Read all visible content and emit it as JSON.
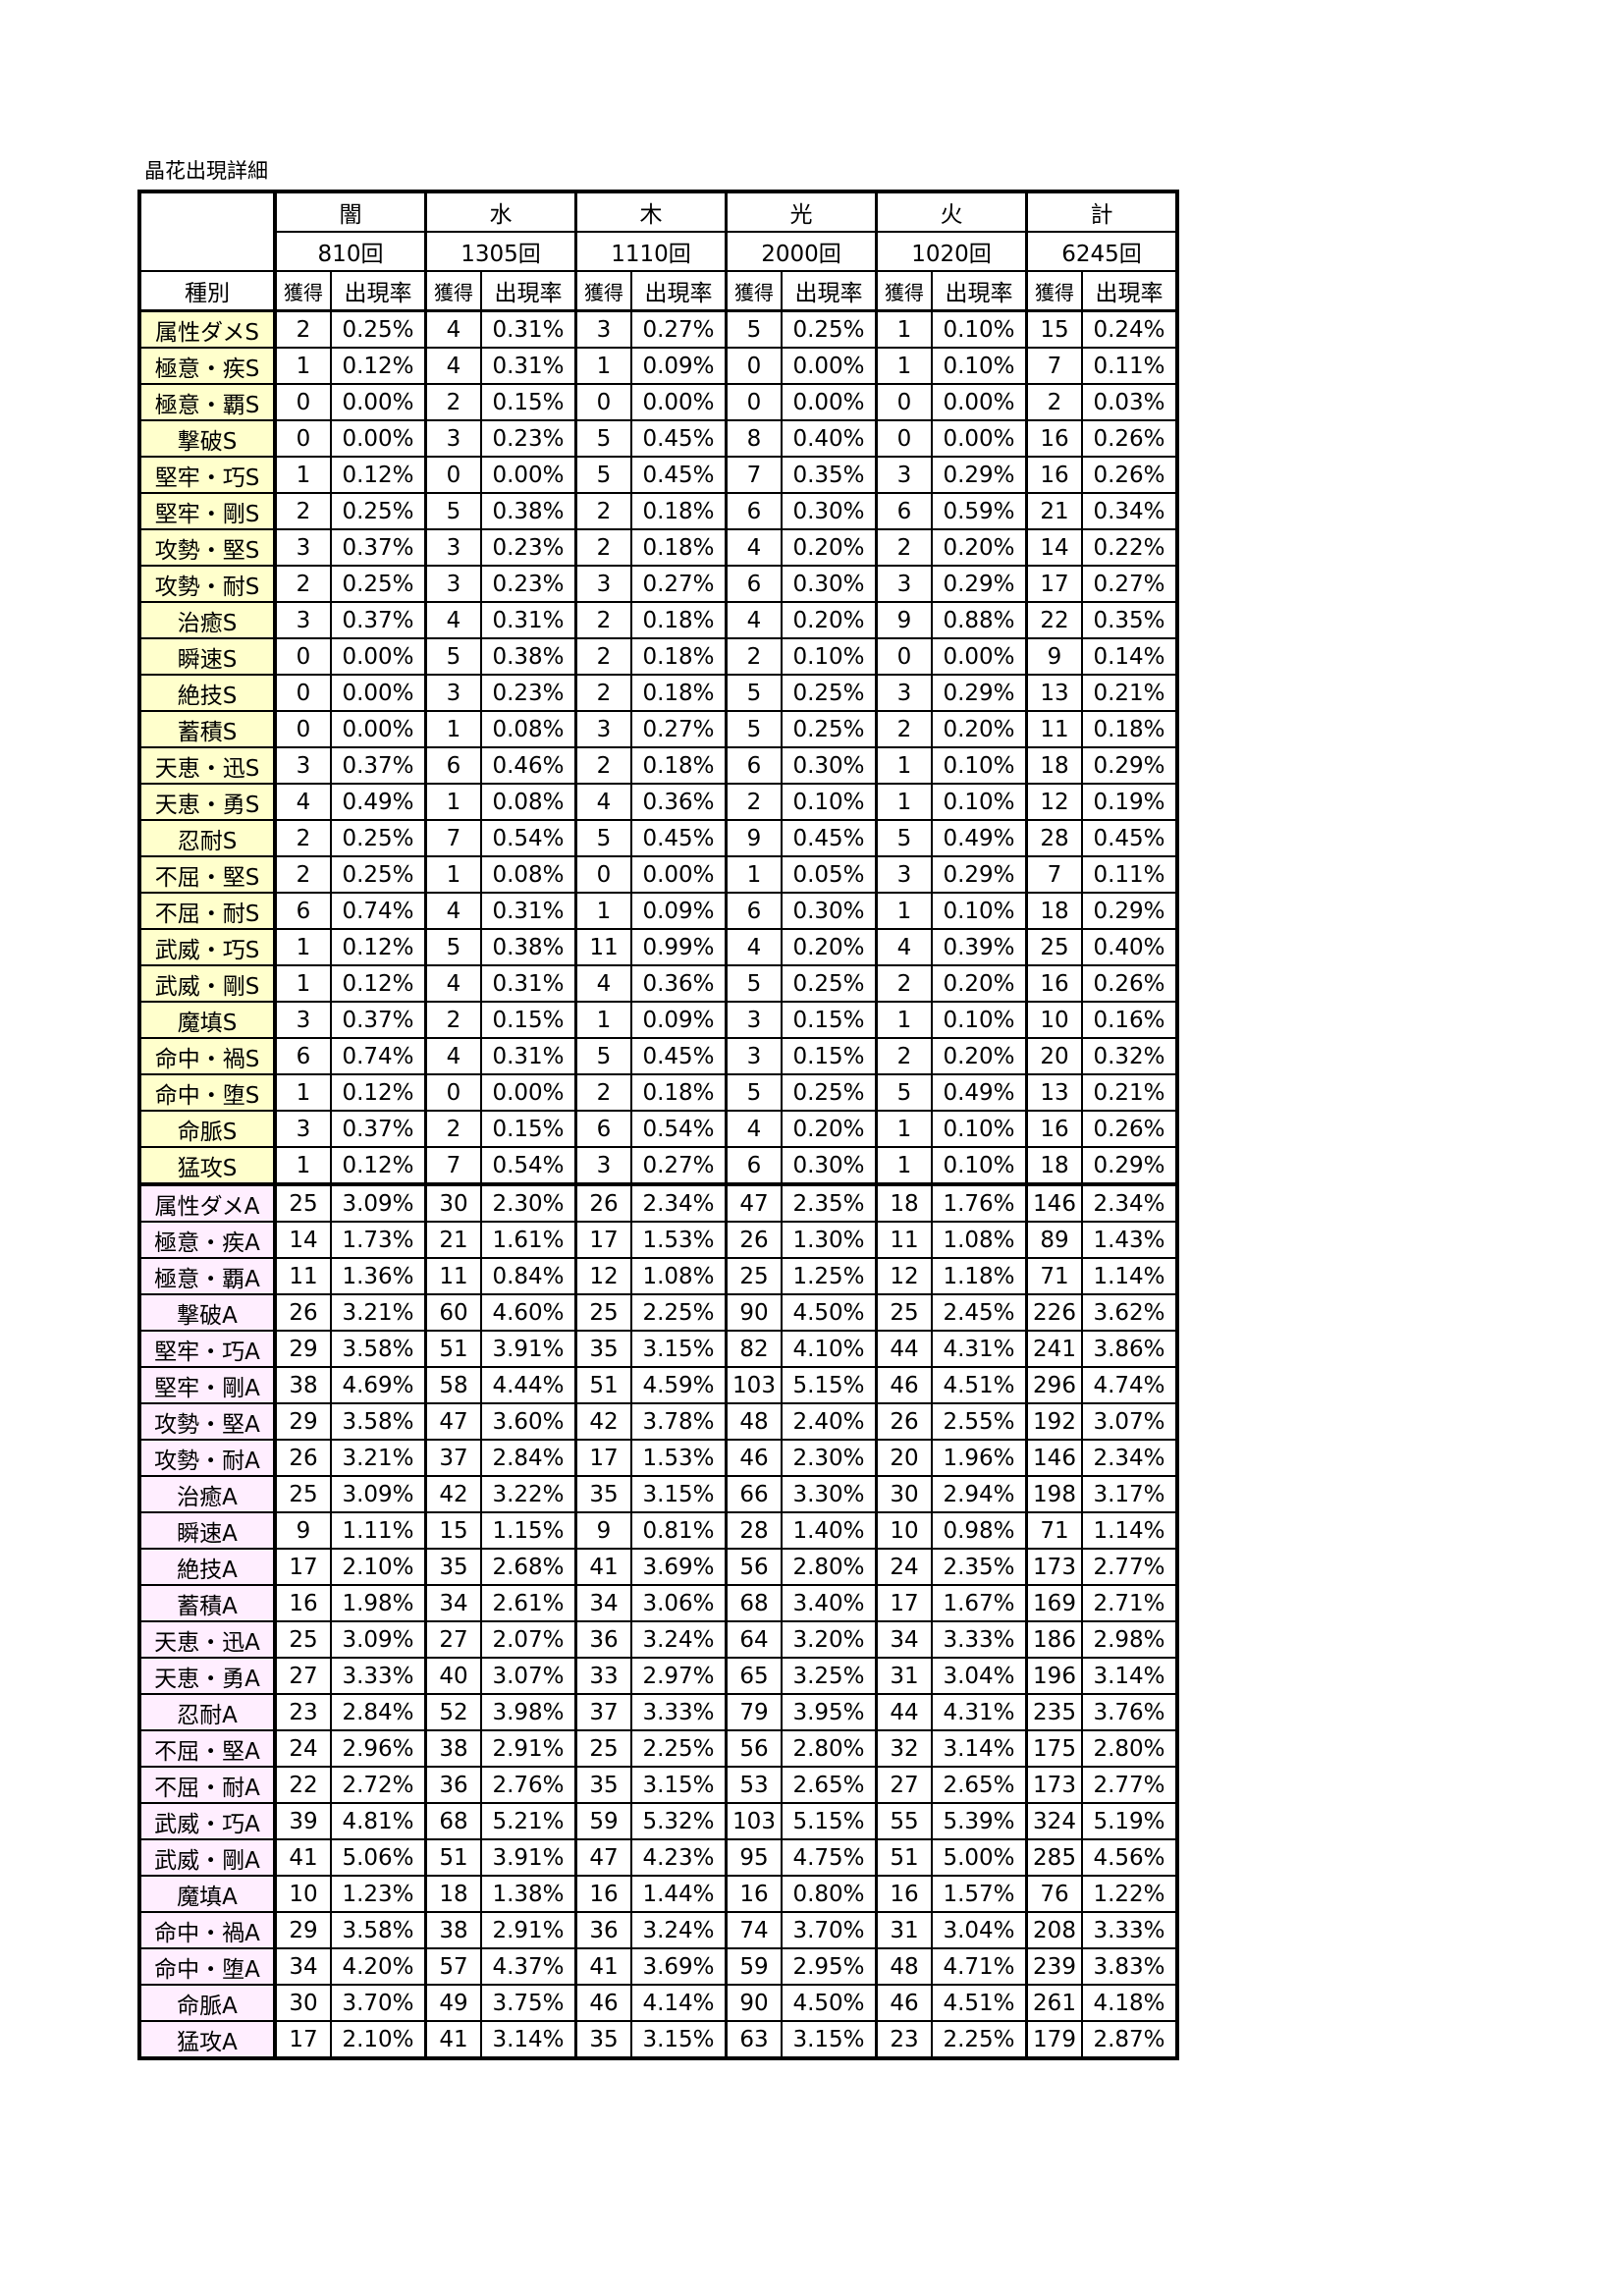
{
  "title": "晶花出現詳細",
  "colors": {
    "s_rank_bg": "#FFFFCC",
    "a_rank_bg": "#FFEEFF"
  },
  "header": {
    "elements": [
      "闇",
      "水",
      "木",
      "光",
      "火",
      "計"
    ],
    "counts": [
      "810回",
      "1305回",
      "1110回",
      "2000回",
      "1020回",
      "6245回"
    ],
    "type_label": "種別",
    "obtained_label": "獲得",
    "rate_label": "出現率"
  },
  "rows": [
    [
      "属性ダメS",
      "2",
      "0.25%",
      "4",
      "0.31%",
      "3",
      "0.27%",
      "5",
      "0.25%",
      "1",
      "0.10%",
      "15",
      "0.24%"
    ],
    [
      "極意・疾S",
      "1",
      "0.12%",
      "4",
      "0.31%",
      "1",
      "0.09%",
      "0",
      "0.00%",
      "1",
      "0.10%",
      "7",
      "0.11%"
    ],
    [
      "極意・覇S",
      "0",
      "0.00%",
      "2",
      "0.15%",
      "0",
      "0.00%",
      "0",
      "0.00%",
      "0",
      "0.00%",
      "2",
      "0.03%"
    ],
    [
      "撃破S",
      "0",
      "0.00%",
      "3",
      "0.23%",
      "5",
      "0.45%",
      "8",
      "0.40%",
      "0",
      "0.00%",
      "16",
      "0.26%"
    ],
    [
      "堅牢・巧S",
      "1",
      "0.12%",
      "0",
      "0.00%",
      "5",
      "0.45%",
      "7",
      "0.35%",
      "3",
      "0.29%",
      "16",
      "0.26%"
    ],
    [
      "堅牢・剛S",
      "2",
      "0.25%",
      "5",
      "0.38%",
      "2",
      "0.18%",
      "6",
      "0.30%",
      "6",
      "0.59%",
      "21",
      "0.34%"
    ],
    [
      "攻勢・堅S",
      "3",
      "0.37%",
      "3",
      "0.23%",
      "2",
      "0.18%",
      "4",
      "0.20%",
      "2",
      "0.20%",
      "14",
      "0.22%"
    ],
    [
      "攻勢・耐S",
      "2",
      "0.25%",
      "3",
      "0.23%",
      "3",
      "0.27%",
      "6",
      "0.30%",
      "3",
      "0.29%",
      "17",
      "0.27%"
    ],
    [
      "治癒S",
      "3",
      "0.37%",
      "4",
      "0.31%",
      "2",
      "0.18%",
      "4",
      "0.20%",
      "9",
      "0.88%",
      "22",
      "0.35%"
    ],
    [
      "瞬速S",
      "0",
      "0.00%",
      "5",
      "0.38%",
      "2",
      "0.18%",
      "2",
      "0.10%",
      "0",
      "0.00%",
      "9",
      "0.14%"
    ],
    [
      "絶技S",
      "0",
      "0.00%",
      "3",
      "0.23%",
      "2",
      "0.18%",
      "5",
      "0.25%",
      "3",
      "0.29%",
      "13",
      "0.21%"
    ],
    [
      "蓄積S",
      "0",
      "0.00%",
      "1",
      "0.08%",
      "3",
      "0.27%",
      "5",
      "0.25%",
      "2",
      "0.20%",
      "11",
      "0.18%"
    ],
    [
      "天恵・迅S",
      "3",
      "0.37%",
      "6",
      "0.46%",
      "2",
      "0.18%",
      "6",
      "0.30%",
      "1",
      "0.10%",
      "18",
      "0.29%"
    ],
    [
      "天恵・勇S",
      "4",
      "0.49%",
      "1",
      "0.08%",
      "4",
      "0.36%",
      "2",
      "0.10%",
      "1",
      "0.10%",
      "12",
      "0.19%"
    ],
    [
      "忍耐S",
      "2",
      "0.25%",
      "7",
      "0.54%",
      "5",
      "0.45%",
      "9",
      "0.45%",
      "5",
      "0.49%",
      "28",
      "0.45%"
    ],
    [
      "不屈・堅S",
      "2",
      "0.25%",
      "1",
      "0.08%",
      "0",
      "0.00%",
      "1",
      "0.05%",
      "3",
      "0.29%",
      "7",
      "0.11%"
    ],
    [
      "不屈・耐S",
      "6",
      "0.74%",
      "4",
      "0.31%",
      "1",
      "0.09%",
      "6",
      "0.30%",
      "1",
      "0.10%",
      "18",
      "0.29%"
    ],
    [
      "武威・巧S",
      "1",
      "0.12%",
      "5",
      "0.38%",
      "11",
      "0.99%",
      "4",
      "0.20%",
      "4",
      "0.39%",
      "25",
      "0.40%"
    ],
    [
      "武威・剛S",
      "1",
      "0.12%",
      "4",
      "0.31%",
      "4",
      "0.36%",
      "5",
      "0.25%",
      "2",
      "0.20%",
      "16",
      "0.26%"
    ],
    [
      "魔填S",
      "3",
      "0.37%",
      "2",
      "0.15%",
      "1",
      "0.09%",
      "3",
      "0.15%",
      "1",
      "0.10%",
      "10",
      "0.16%"
    ],
    [
      "命中・禍S",
      "6",
      "0.74%",
      "4",
      "0.31%",
      "5",
      "0.45%",
      "3",
      "0.15%",
      "2",
      "0.20%",
      "20",
      "0.32%"
    ],
    [
      "命中・堕S",
      "1",
      "0.12%",
      "0",
      "0.00%",
      "2",
      "0.18%",
      "5",
      "0.25%",
      "5",
      "0.49%",
      "13",
      "0.21%"
    ],
    [
      "命脈S",
      "3",
      "0.37%",
      "2",
      "0.15%",
      "6",
      "0.54%",
      "4",
      "0.20%",
      "1",
      "0.10%",
      "16",
      "0.26%"
    ],
    [
      "猛攻S",
      "1",
      "0.12%",
      "7",
      "0.54%",
      "3",
      "0.27%",
      "6",
      "0.30%",
      "1",
      "0.10%",
      "18",
      "0.29%"
    ],
    [
      "属性ダメA",
      "25",
      "3.09%",
      "30",
      "2.30%",
      "26",
      "2.34%",
      "47",
      "2.35%",
      "18",
      "1.76%",
      "146",
      "2.34%"
    ],
    [
      "極意・疾A",
      "14",
      "1.73%",
      "21",
      "1.61%",
      "17",
      "1.53%",
      "26",
      "1.30%",
      "11",
      "1.08%",
      "89",
      "1.43%"
    ],
    [
      "極意・覇A",
      "11",
      "1.36%",
      "11",
      "0.84%",
      "12",
      "1.08%",
      "25",
      "1.25%",
      "12",
      "1.18%",
      "71",
      "1.14%"
    ],
    [
      "撃破A",
      "26",
      "3.21%",
      "60",
      "4.60%",
      "25",
      "2.25%",
      "90",
      "4.50%",
      "25",
      "2.45%",
      "226",
      "3.62%"
    ],
    [
      "堅牢・巧A",
      "29",
      "3.58%",
      "51",
      "3.91%",
      "35",
      "3.15%",
      "82",
      "4.10%",
      "44",
      "4.31%",
      "241",
      "3.86%"
    ],
    [
      "堅牢・剛A",
      "38",
      "4.69%",
      "58",
      "4.44%",
      "51",
      "4.59%",
      "103",
      "5.15%",
      "46",
      "4.51%",
      "296",
      "4.74%"
    ],
    [
      "攻勢・堅A",
      "29",
      "3.58%",
      "47",
      "3.60%",
      "42",
      "3.78%",
      "48",
      "2.40%",
      "26",
      "2.55%",
      "192",
      "3.07%"
    ],
    [
      "攻勢・耐A",
      "26",
      "3.21%",
      "37",
      "2.84%",
      "17",
      "1.53%",
      "46",
      "2.30%",
      "20",
      "1.96%",
      "146",
      "2.34%"
    ],
    [
      "治癒A",
      "25",
      "3.09%",
      "42",
      "3.22%",
      "35",
      "3.15%",
      "66",
      "3.30%",
      "30",
      "2.94%",
      "198",
      "3.17%"
    ],
    [
      "瞬速A",
      "9",
      "1.11%",
      "15",
      "1.15%",
      "9",
      "0.81%",
      "28",
      "1.40%",
      "10",
      "0.98%",
      "71",
      "1.14%"
    ],
    [
      "絶技A",
      "17",
      "2.10%",
      "35",
      "2.68%",
      "41",
      "3.69%",
      "56",
      "2.80%",
      "24",
      "2.35%",
      "173",
      "2.77%"
    ],
    [
      "蓄積A",
      "16",
      "1.98%",
      "34",
      "2.61%",
      "34",
      "3.06%",
      "68",
      "3.40%",
      "17",
      "1.67%",
      "169",
      "2.71%"
    ],
    [
      "天恵・迅A",
      "25",
      "3.09%",
      "27",
      "2.07%",
      "36",
      "3.24%",
      "64",
      "3.20%",
      "34",
      "3.33%",
      "186",
      "2.98%"
    ],
    [
      "天恵・勇A",
      "27",
      "3.33%",
      "40",
      "3.07%",
      "33",
      "2.97%",
      "65",
      "3.25%",
      "31",
      "3.04%",
      "196",
      "3.14%"
    ],
    [
      "忍耐A",
      "23",
      "2.84%",
      "52",
      "3.98%",
      "37",
      "3.33%",
      "79",
      "3.95%",
      "44",
      "4.31%",
      "235",
      "3.76%"
    ],
    [
      "不屈・堅A",
      "24",
      "2.96%",
      "38",
      "2.91%",
      "25",
      "2.25%",
      "56",
      "2.80%",
      "32",
      "3.14%",
      "175",
      "2.80%"
    ],
    [
      "不屈・耐A",
      "22",
      "2.72%",
      "36",
      "2.76%",
      "35",
      "3.15%",
      "53",
      "2.65%",
      "27",
      "2.65%",
      "173",
      "2.77%"
    ],
    [
      "武威・巧A",
      "39",
      "4.81%",
      "68",
      "5.21%",
      "59",
      "5.32%",
      "103",
      "5.15%",
      "55",
      "5.39%",
      "324",
      "5.19%"
    ],
    [
      "武威・剛A",
      "41",
      "5.06%",
      "51",
      "3.91%",
      "47",
      "4.23%",
      "95",
      "4.75%",
      "51",
      "5.00%",
      "285",
      "4.56%"
    ],
    [
      "魔填A",
      "10",
      "1.23%",
      "18",
      "1.38%",
      "16",
      "1.44%",
      "16",
      "0.80%",
      "16",
      "1.57%",
      "76",
      "1.22%"
    ],
    [
      "命中・禍A",
      "29",
      "3.58%",
      "38",
      "2.91%",
      "36",
      "3.24%",
      "74",
      "3.70%",
      "31",
      "3.04%",
      "208",
      "3.33%"
    ],
    [
      "命中・堕A",
      "34",
      "4.20%",
      "57",
      "4.37%",
      "41",
      "3.69%",
      "59",
      "2.95%",
      "48",
      "4.71%",
      "239",
      "3.83%"
    ],
    [
      "命脈A",
      "30",
      "3.70%",
      "49",
      "3.75%",
      "46",
      "4.14%",
      "90",
      "4.50%",
      "46",
      "4.51%",
      "261",
      "4.18%"
    ],
    [
      "猛攻A",
      "17",
      "2.10%",
      "41",
      "3.14%",
      "35",
      "3.15%",
      "63",
      "3.15%",
      "23",
      "2.25%",
      "179",
      "2.87%"
    ]
  ]
}
